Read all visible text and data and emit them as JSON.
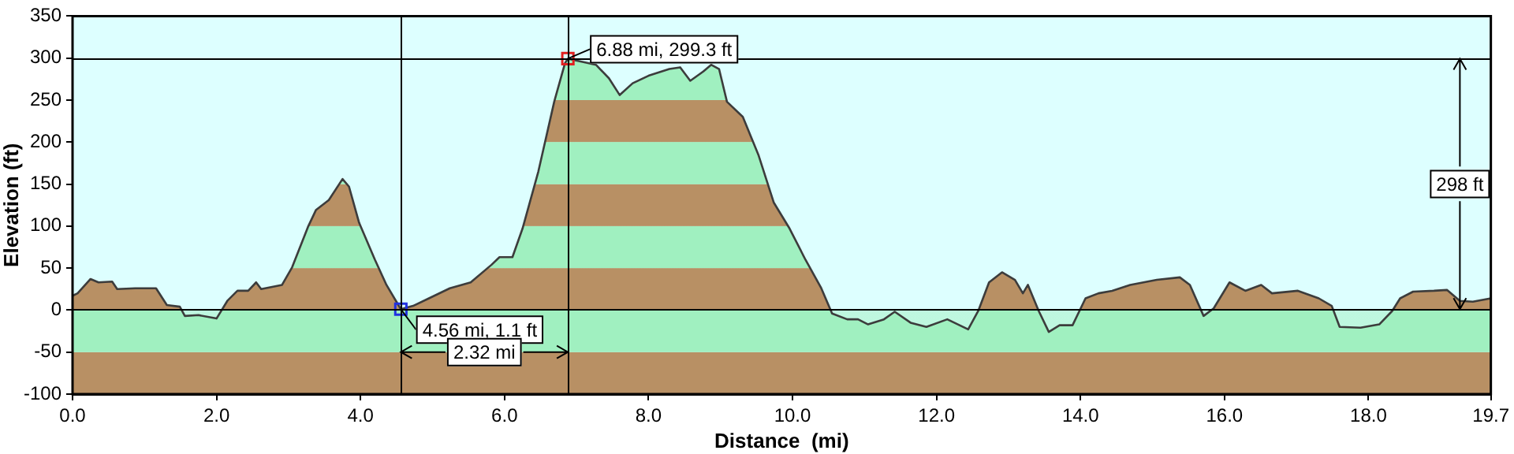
{
  "chart_data": {
    "type": "area",
    "xlabel": "Distance  (mi)",
    "ylabel": "Elevation (ft)",
    "xlim": [
      0,
      19.7
    ],
    "xticks": [
      {
        "value": 0,
        "label": "0.0"
      },
      {
        "value": 2,
        "label": "2.0"
      },
      {
        "value": 4,
        "label": "4.0"
      },
      {
        "value": 6,
        "label": "6.0"
      },
      {
        "value": 8,
        "label": "8.0"
      },
      {
        "value": 10,
        "label": "10.0"
      },
      {
        "value": 12,
        "label": "12.0"
      },
      {
        "value": 14,
        "label": "14.0"
      },
      {
        "value": 16,
        "label": "16.0"
      },
      {
        "value": 18,
        "label": "18.0"
      },
      {
        "value": 19.7,
        "label": "19.7"
      }
    ],
    "ylim": [
      -100,
      350
    ],
    "yticks": [
      -100,
      -50,
      0,
      50,
      100,
      150,
      200,
      250,
      300,
      350
    ],
    "legend": false,
    "series": [
      {
        "color": "#3c3c3c",
        "x": [
          0,
          0.07,
          0.25,
          0.36,
          0.55,
          0.62,
          0.87,
          1.16,
          1.31,
          1.49,
          1.56,
          1.75,
          2.0,
          2.15,
          2.29,
          2.44,
          2.55,
          2.62,
          2.91,
          3.05,
          3.27,
          3.38,
          3.56,
          3.75,
          3.84,
          3.98,
          4.2,
          4.36,
          4.56,
          4.73,
          4.95,
          5.24,
          5.53,
          5.82,
          5.93,
          6.11,
          6.25,
          6.47,
          6.69,
          6.84,
          6.88,
          7.16,
          7.27,
          7.45,
          7.6,
          7.78,
          8.0,
          8.29,
          8.44,
          8.58,
          8.76,
          8.87,
          8.98,
          9.09,
          9.31,
          9.53,
          9.74,
          9.96,
          10.18,
          10.4,
          10.55,
          10.76,
          10.91,
          11.05,
          11.27,
          11.42,
          11.64,
          11.86,
          12.15,
          12.44,
          12.58,
          12.73,
          12.91,
          13.09,
          13.2,
          13.27,
          13.42,
          13.56,
          13.71,
          13.89,
          14.07,
          14.25,
          14.44,
          14.69,
          15.06,
          15.38,
          15.52,
          15.71,
          15.85,
          16.07,
          16.29,
          16.51,
          16.66,
          17.02,
          17.31,
          17.49,
          17.6,
          17.89,
          18.15,
          18.33,
          18.44,
          18.62,
          18.91,
          19.09,
          19.27,
          19.45,
          19.7
        ],
        "values": [
          17,
          20,
          37,
          33,
          34,
          25,
          26,
          26,
          6,
          4,
          -7,
          -6,
          -10,
          11,
          23,
          23,
          33,
          25,
          30,
          51,
          99,
          119,
          131,
          156,
          147,
          104,
          60,
          30,
          1.1,
          5,
          14,
          26,
          33,
          54,
          63,
          63,
          97,
          165,
          248,
          294,
          299.3,
          294,
          292,
          276,
          256,
          270,
          279,
          287,
          289,
          273,
          284,
          292,
          287,
          248,
          230,
          184,
          128,
          97,
          60,
          26,
          -4,
          -11,
          -11,
          -17,
          -11,
          -2,
          -15,
          -20,
          -11,
          -23,
          -1,
          33,
          45,
          36,
          20,
          30,
          -1,
          -26,
          -18,
          -18,
          14,
          20,
          23,
          30,
          36,
          39,
          30,
          -7,
          2,
          33,
          23,
          30,
          20,
          23,
          14,
          5,
          -20,
          -21,
          -17,
          -1,
          14,
          22,
          23,
          24,
          11,
          10,
          14
        ]
      },
      {
        "type": "scatter",
        "marker": "square",
        "colors": [
          "#2030e0",
          "#e02020"
        ],
        "x": [
          4.56,
          6.88
        ],
        "values": [
          1.1,
          299.3
        ]
      }
    ],
    "bands": [
      {
        "axis": "y",
        "from": -100,
        "to": -50,
        "color": "#b89064"
      },
      {
        "axis": "y",
        "from": -50,
        "to": 0,
        "color": "#a0f0c0"
      },
      {
        "axis": "y",
        "from": 0,
        "to": 50,
        "color": "#b89064"
      },
      {
        "axis": "y",
        "from": 50,
        "to": 100,
        "color": "#a0f0c0"
      },
      {
        "axis": "y",
        "from": 100,
        "to": 150,
        "color": "#b89064"
      },
      {
        "axis": "y",
        "from": 150,
        "to": 200,
        "color": "#a0f0c0"
      },
      {
        "axis": "y",
        "from": 200,
        "to": 250,
        "color": "#b89064"
      },
      {
        "axis": "y",
        "from": 250,
        "to": 300,
        "color": "#a0f0c0"
      }
    ],
    "ref_lines": [
      {
        "axis": "x",
        "value": 4.56,
        "color": "#000000"
      },
      {
        "axis": "x",
        "value": 6.88,
        "color": "#000000"
      },
      {
        "axis": "y",
        "value": 1.1,
        "color": "#000000"
      },
      {
        "axis": "y",
        "value": 299.3,
        "color": "#000000"
      }
    ],
    "annotations": [
      {
        "text": "4.56 mi, 1.1 ft",
        "x": 4.56,
        "y": 1.1
      },
      {
        "text": "6.88 mi, 299.3 ft",
        "x": 6.88,
        "y": 299.3
      },
      {
        "text": "2.32 mi",
        "x": 6.88
      },
      {
        "text": "298 ft",
        "x": 19.27,
        "y": 150
      }
    ]
  }
}
